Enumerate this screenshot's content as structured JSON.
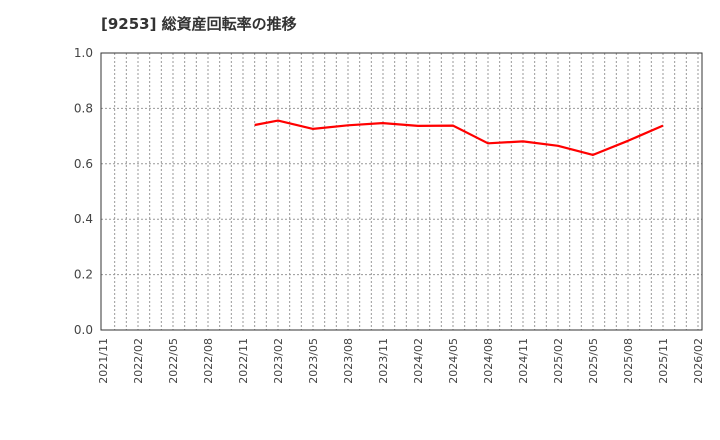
{
  "title": "[9253]  総資産回転率の推移",
  "colors": {
    "line": "#ff0000",
    "grid": "#999999",
    "axis": "#333333",
    "text": "#444444"
  },
  "chart_data": {
    "type": "line",
    "title": "[9253]  総資産回転率の推移",
    "xlabel": "",
    "ylabel": "",
    "ylim": [
      0.0,
      1.0
    ],
    "yticks": [
      "0.0",
      "0.2",
      "0.4",
      "0.6",
      "0.8",
      "1.0"
    ],
    "xticks": [
      "2021/11",
      "2022/02",
      "2022/05",
      "2022/08",
      "2022/11",
      "2023/02",
      "2023/05",
      "2023/08",
      "2023/11",
      "2024/02",
      "2024/05",
      "2024/08",
      "2024/11",
      "2025/02",
      "2025/05",
      "2025/08",
      "2025/11",
      "2026/02"
    ],
    "grid": true,
    "legend": "none",
    "series": [
      {
        "name": "総資産回転率",
        "x": [
          "2022/12",
          "2023/02",
          "2023/05",
          "2023/08",
          "2023/11",
          "2024/02",
          "2024/05",
          "2024/08",
          "2024/11",
          "2025/02",
          "2025/05",
          "2025/08",
          "2025/11"
        ],
        "values": [
          0.74,
          0.756,
          0.726,
          0.739,
          0.747,
          0.737,
          0.738,
          0.674,
          0.681,
          0.665,
          0.632,
          0.683,
          0.738
        ]
      }
    ]
  }
}
